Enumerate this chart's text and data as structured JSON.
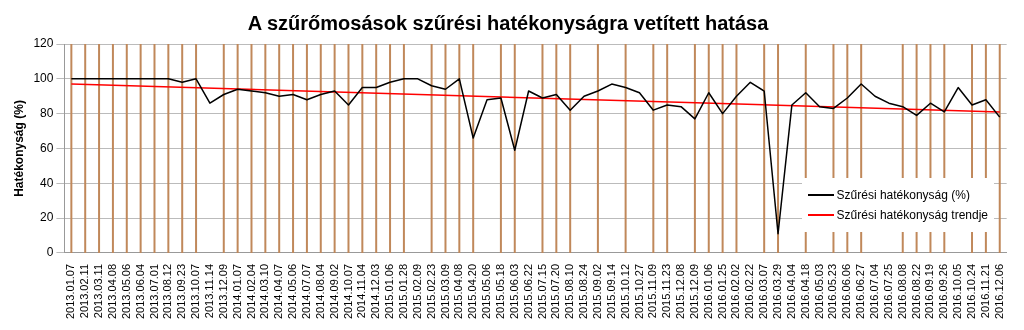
{
  "chart_data": {
    "type": "line",
    "title": "A szűrőmosások szűrési hatékonyságra vetített hatása",
    "ylabel": "Hatékonyság (%)",
    "categories": [
      "2013.01.07",
      "2013.02.11",
      "2013.03.11",
      "2013.04.08",
      "2013.05.06",
      "2013.06.04",
      "2013.07.01",
      "2013.08.12",
      "2013.09.23",
      "2013.10.07",
      "2013.11.14",
      "2013.12.09",
      "2014.01.07",
      "2014.02.04",
      "2014.03.10",
      "2014.04.07",
      "2014.05.06",
      "2014.07.07",
      "2014.08.04",
      "2014.09.02",
      "2014.10.07",
      "2014.11.04",
      "2014.12.03",
      "2015.01.06",
      "2015.01.28",
      "2015.02.09",
      "2015.02.23",
      "2015.03.09",
      "2015.04.08",
      "2015.04.20",
      "2015.05.06",
      "2015.05.18",
      "2015.06.03",
      "2015.06.22",
      "2015.07.15",
      "2015.07.20",
      "2015.08.10",
      "2015.08.24",
      "2015.09.02",
      "2015.09.14",
      "2015.10.12",
      "2015.10.27",
      "2015.11.09",
      "2015.11.23",
      "2015.12.08",
      "2015.12.09",
      "2016.01.06",
      "2016.01.25",
      "2016.02.02",
      "2016.02.22",
      "2016.03.07",
      "2016.03.29",
      "2016.04.04",
      "2016.04.18",
      "2016.05.03",
      "2016.05.23",
      "2016.06.06",
      "2016.06.27",
      "2016.07.04",
      "2016.07.25",
      "2016.08.08",
      "2016.08.22",
      "2016.09.19",
      "2016.09.26",
      "2016.10.05",
      "2016.10.24",
      "2016.11.21",
      "2016.12.06"
    ],
    "series": [
      {
        "name": "Szűrési hatékonyság (%)",
        "color": "#000000",
        "values": [
          100,
          100,
          100,
          100,
          100,
          100,
          100,
          100,
          98,
          100,
          86,
          91,
          94,
          93,
          92,
          90,
          91,
          88,
          91,
          93,
          85,
          95,
          95,
          98,
          100,
          100,
          96,
          94,
          100,
          66,
          88,
          89,
          59,
          93,
          89,
          91,
          82,
          90,
          93,
          97,
          95,
          92,
          82,
          85,
          84,
          77,
          92,
          80,
          90,
          98,
          93,
          11,
          85,
          92,
          84,
          83,
          89,
          97,
          90,
          86,
          84,
          79,
          86,
          81,
          95,
          85,
          88,
          78
        ]
      },
      {
        "name": "Szűrési hatékonyság trendje",
        "color": "#ff0000",
        "x": [
          "2013.01.07",
          "2016.12.06"
        ],
        "values": [
          97,
          81
        ]
      }
    ],
    "ylim": [
      0,
      120
    ],
    "yticks": [
      0,
      20,
      40,
      60,
      80,
      100,
      120
    ],
    "grid": "y",
    "legend": "bottom right",
    "marker": "none",
    "line_style": "solid",
    "ref_lines": [
      {
        "axis": "x",
        "value": "2013.01.07",
        "color": "#c0885a"
      },
      {
        "axis": "x",
        "value": "2013.02.11",
        "color": "#c0885a"
      },
      {
        "axis": "x",
        "value": "2013.03.11",
        "color": "#c0885a"
      },
      {
        "axis": "x",
        "value": "2013.04.08",
        "color": "#c0885a"
      },
      {
        "axis": "x",
        "value": "2013.05.06",
        "color": "#c0885a"
      },
      {
        "axis": "x",
        "value": "2013.06.04",
        "color": "#c0885a"
      },
      {
        "axis": "x",
        "value": "2013.07.01",
        "color": "#c0885a"
      },
      {
        "axis": "x",
        "value": "2013.08.12",
        "color": "#c0885a"
      },
      {
        "axis": "x",
        "value": "2013.09.23",
        "color": "#c0885a"
      },
      {
        "axis": "x",
        "value": "2013.10.07",
        "color": "#c0885a"
      },
      {
        "axis": "x",
        "value": "2013.12.09",
        "color": "#c0885a"
      },
      {
        "axis": "x",
        "value": "2014.01.07",
        "color": "#c0885a"
      },
      {
        "axis": "x",
        "value": "2014.02.04",
        "color": "#c0885a"
      },
      {
        "axis": "x",
        "value": "2014.03.10",
        "color": "#c0885a"
      },
      {
        "axis": "x",
        "value": "2014.04.07",
        "color": "#c0885a"
      },
      {
        "axis": "x",
        "value": "2014.05.06",
        "color": "#c0885a"
      },
      {
        "axis": "x",
        "value": "2014.07.07",
        "color": "#c0885a"
      },
      {
        "axis": "x",
        "value": "2014.08.04",
        "color": "#c0885a"
      },
      {
        "axis": "x",
        "value": "2014.09.02",
        "color": "#c0885a"
      },
      {
        "axis": "x",
        "value": "2014.10.07",
        "color": "#c0885a"
      },
      {
        "axis": "x",
        "value": "2014.11.04",
        "color": "#c0885a"
      },
      {
        "axis": "x",
        "value": "2014.12.03",
        "color": "#c0885a"
      },
      {
        "axis": "x",
        "value": "2015.01.06",
        "color": "#c0885a"
      },
      {
        "axis": "x",
        "value": "2015.01.28",
        "color": "#c0885a"
      },
      {
        "axis": "x",
        "value": "2015.02.23",
        "color": "#c0885a"
      },
      {
        "axis": "x",
        "value": "2015.03.09",
        "color": "#c0885a"
      },
      {
        "axis": "x",
        "value": "2015.04.08",
        "color": "#c0885a"
      },
      {
        "axis": "x",
        "value": "2015.04.20",
        "color": "#c0885a"
      },
      {
        "axis": "x",
        "value": "2015.05.18",
        "color": "#c0885a"
      },
      {
        "axis": "x",
        "value": "2015.06.03",
        "color": "#c0885a"
      },
      {
        "axis": "x",
        "value": "2015.07.15",
        "color": "#c0885a"
      },
      {
        "axis": "x",
        "value": "2015.07.20",
        "color": "#c0885a"
      },
      {
        "axis": "x",
        "value": "2015.08.10",
        "color": "#c0885a"
      },
      {
        "axis": "x",
        "value": "2015.09.02",
        "color": "#c0885a"
      },
      {
        "axis": "x",
        "value": "2015.10.12",
        "color": "#c0885a"
      },
      {
        "axis": "x",
        "value": "2015.11.09",
        "color": "#c0885a"
      },
      {
        "axis": "x",
        "value": "2015.11.23",
        "color": "#c0885a"
      },
      {
        "axis": "x",
        "value": "2015.12.09",
        "color": "#c0885a"
      },
      {
        "axis": "x",
        "value": "2016.01.06",
        "color": "#c0885a"
      },
      {
        "axis": "x",
        "value": "2016.01.25",
        "color": "#c0885a"
      },
      {
        "axis": "x",
        "value": "2016.02.02",
        "color": "#c0885a"
      },
      {
        "axis": "x",
        "value": "2016.03.07",
        "color": "#c0885a"
      },
      {
        "axis": "x",
        "value": "2016.03.29",
        "color": "#c0885a"
      },
      {
        "axis": "x",
        "value": "2016.04.18",
        "color": "#c0885a"
      },
      {
        "axis": "x",
        "value": "2016.05.23",
        "color": "#c0885a"
      },
      {
        "axis": "x",
        "value": "2016.06.06",
        "color": "#c0885a"
      },
      {
        "axis": "x",
        "value": "2016.06.27",
        "color": "#c0885a"
      },
      {
        "axis": "x",
        "value": "2016.08.08",
        "color": "#c0885a"
      },
      {
        "axis": "x",
        "value": "2016.08.22",
        "color": "#c0885a"
      },
      {
        "axis": "x",
        "value": "2016.09.19",
        "color": "#c0885a"
      },
      {
        "axis": "x",
        "value": "2016.09.26",
        "color": "#c0885a"
      },
      {
        "axis": "x",
        "value": "2016.10.24",
        "color": "#c0885a"
      },
      {
        "axis": "x",
        "value": "2016.11.21",
        "color": "#c0885a"
      },
      {
        "axis": "x",
        "value": "2016.12.06",
        "color": "#c0885a"
      }
    ]
  }
}
